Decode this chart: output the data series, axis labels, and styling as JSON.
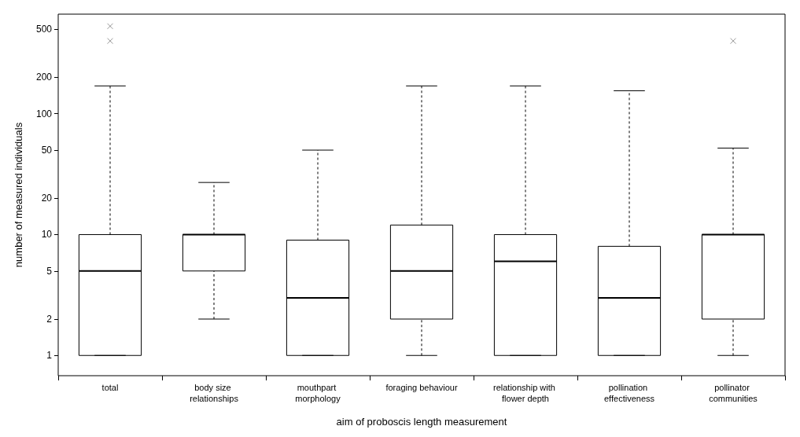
{
  "chart_data": {
    "type": "box",
    "xlabel": "aim of proboscis length measurement",
    "ylabel": "number of measured individuals",
    "categories": [
      "total",
      "body size relationships",
      "mouthpart morphology",
      "foraging behaviour",
      "relationship with flower depth",
      "pollination effectiveness",
      "pollinator communities"
    ],
    "log": true,
    "ylim": [
      0.68,
      667
    ],
    "yticks": [
      1,
      2,
      5,
      10,
      20,
      50,
      100,
      200,
      500
    ],
    "grid": false,
    "marker": "cross",
    "color": "#000000",
    "boxes": [
      {
        "low": 1,
        "q1": 1,
        "median": 5,
        "q3": 10,
        "high": 170,
        "outliers": [
          400,
          530
        ]
      },
      {
        "low": 2,
        "q1": 5,
        "median": 10,
        "q3": 10,
        "high": 27
      },
      {
        "low": 1,
        "q1": 1,
        "median": 3,
        "q3": 9,
        "high": 50
      },
      {
        "low": 1,
        "q1": 2,
        "median": 5,
        "q3": 12,
        "high": 170
      },
      {
        "low": 1,
        "q1": 1,
        "median": 6,
        "q3": 10,
        "high": 170
      },
      {
        "low": 1,
        "q1": 1,
        "median": 3,
        "q3": 8,
        "high": 155
      },
      {
        "low": 1,
        "q1": 2,
        "median": 10,
        "q3": 10,
        "high": 52,
        "outliers": [
          400
        ]
      }
    ]
  }
}
